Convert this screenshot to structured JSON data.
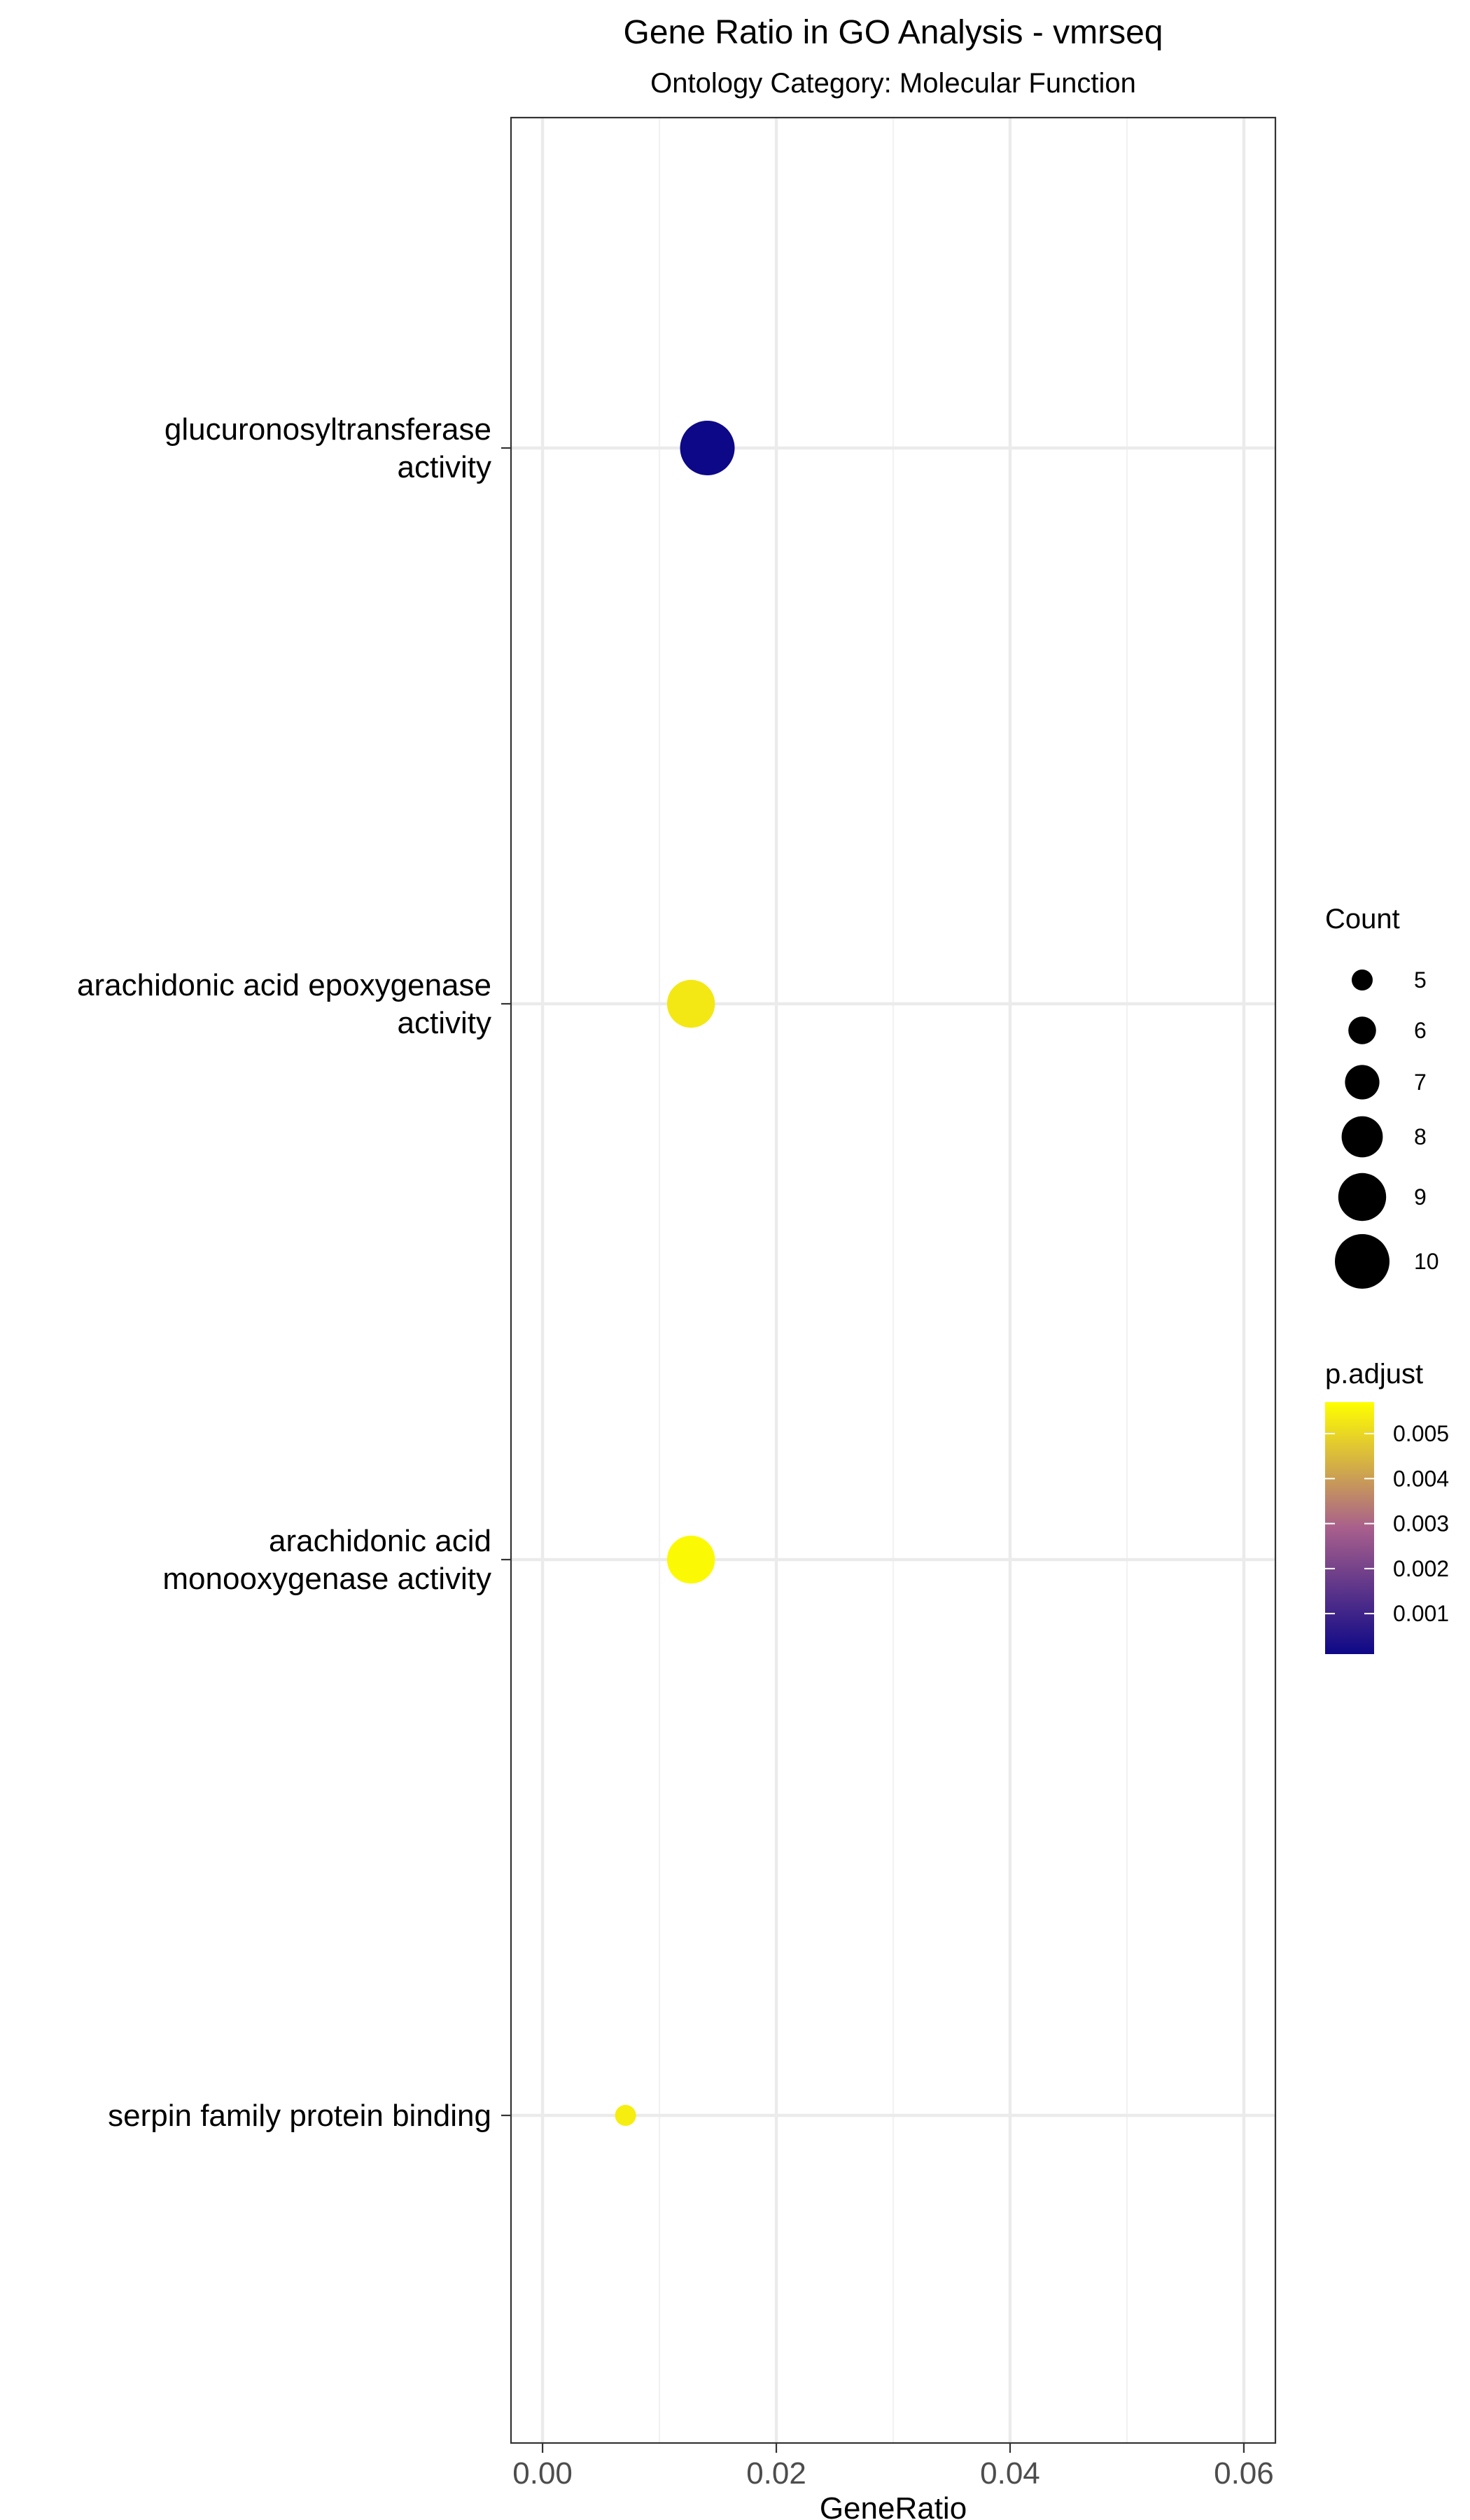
{
  "chart_data": {
    "type": "scatter",
    "title": "Gene Ratio in GO Analysis - vmrseq",
    "subtitle": "Ontology Category: Molecular Function",
    "xlabel": "GeneRatio",
    "ylabel": "",
    "xlim": [
      -0.0027,
      0.0627
    ],
    "x_ticks": [
      0.0,
      0.02,
      0.04,
      0.06
    ],
    "x_tick_labels": [
      "0.00",
      "0.02",
      "0.04",
      "0.06"
    ],
    "grid": true,
    "categories": [
      "glucuronosyltransferase activity",
      "arachidonic acid epoxygenase activity",
      "arachidonic acid monooxygenase activity",
      "serpin family protein binding"
    ],
    "category_label_lines": [
      [
        "glucuronosyltransferase",
        "activity"
      ],
      [
        "arachidonic acid epoxygenase",
        "activity"
      ],
      [
        "arachidonic acid",
        "monooxygenase activity"
      ],
      [
        "serpin family protein binding"
      ]
    ],
    "points": [
      {
        "category": "glucuronosyltransferase activity",
        "x": 0.0141,
        "count": 10,
        "p_adjust": 0.0001
      },
      {
        "category": "arachidonic acid epoxygenase activity",
        "x": 0.0127,
        "count": 9,
        "p_adjust": 0.0053
      },
      {
        "category": "arachidonic acid monooxygenase activity",
        "x": 0.0127,
        "count": 9,
        "p_adjust": 0.0056
      },
      {
        "category": "serpin family protein binding",
        "x": 0.0071,
        "count": 5,
        "p_adjust": 0.0054
      }
    ],
    "size_legend": {
      "title": "Count",
      "values": [
        5,
        6,
        7,
        8,
        9,
        10
      ],
      "labels": [
        "5",
        "6",
        "7",
        "8",
        "9",
        "10"
      ]
    },
    "color_legend": {
      "title": "p.adjust",
      "min": 0.0001,
      "max": 0.0057,
      "ticks": [
        0.001,
        0.002,
        0.003,
        0.004,
        0.005
      ],
      "tick_labels": [
        "0.001",
        "0.002",
        "0.003",
        "0.004",
        "0.005"
      ],
      "low_color": "#0D0887",
      "mid_color": "#A85F8C",
      "high_color": "#FFFF00"
    },
    "legend_position": "right"
  }
}
